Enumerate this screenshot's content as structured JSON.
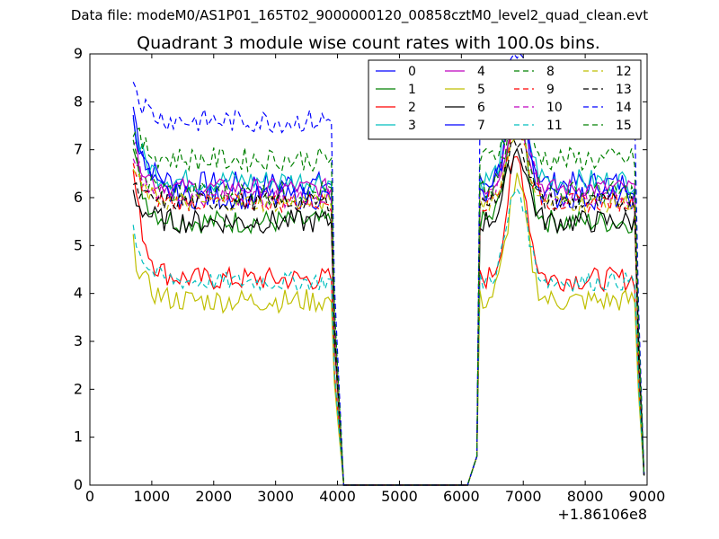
{
  "header": {
    "data_file": "Data file: modeM0/AS1P01_165T02_9000000120_00858cztM0_level2_quad_clean.evt"
  },
  "chart_data": {
    "type": "line",
    "title": "Quadrant 3 module wise count rates with 100.0s bins.",
    "xlabel": "",
    "ylabel": "",
    "x_offset_label": "+1.86106e8",
    "xlim": [
      0,
      9000
    ],
    "ylim": [
      0,
      9
    ],
    "x_ticks": [
      0,
      1000,
      2000,
      3000,
      4000,
      5000,
      6000,
      7000,
      8000,
      9000
    ],
    "y_ticks": [
      0,
      1,
      2,
      3,
      4,
      5,
      6,
      7,
      8,
      9
    ],
    "legend_position": "top-right",
    "legend_columns": 4,
    "segments": [
      {
        "start": 700,
        "end": 3900,
        "drop_end": 4100
      },
      {
        "start": 6300,
        "end": 8800,
        "rise_start": 6100,
        "drop_end": 8950
      }
    ],
    "series": [
      {
        "name": "0",
        "color": "#0000ff",
        "style": "solid",
        "baseline": 6.3,
        "peak": 7.9,
        "peak2": 8.1,
        "amp": 0.25
      },
      {
        "name": "1",
        "color": "#008000",
        "style": "solid",
        "baseline": 5.5,
        "peak": 7.0,
        "peak2": 7.6,
        "amp": 0.25
      },
      {
        "name": "2",
        "color": "#ff0000",
        "style": "solid",
        "baseline": 4.3,
        "peak": 6.6,
        "peak2": 6.8,
        "amp": 0.25
      },
      {
        "name": "3",
        "color": "#00bfbf",
        "style": "solid",
        "baseline": 6.35,
        "peak": 7.6,
        "peak2": 8.2,
        "amp": 0.25
      },
      {
        "name": "4",
        "color": "#bf00bf",
        "style": "solid",
        "baseline": 6.2,
        "peak": 7.2,
        "peak2": 7.7,
        "amp": 0.2
      },
      {
        "name": "5",
        "color": "#bfbf00",
        "style": "solid",
        "baseline": 3.85,
        "peak": 5.0,
        "peak2": 6.3,
        "amp": 0.25
      },
      {
        "name": "6",
        "color": "#000000",
        "style": "solid",
        "baseline": 5.5,
        "peak": 6.1,
        "peak2": 7.0,
        "amp": 0.25
      },
      {
        "name": "7",
        "color": "#0000ff",
        "style": "solid",
        "baseline": 6.0,
        "peak": 7.8,
        "peak2": 8.5,
        "amp": 0.25
      },
      {
        "name": "8",
        "color": "#008000",
        "style": "dashed",
        "baseline": 6.1,
        "peak": 7.0,
        "peak2": 7.8,
        "amp": 0.25
      },
      {
        "name": "9",
        "color": "#ff0000",
        "style": "dashed",
        "baseline": 5.9,
        "peak": 6.6,
        "peak2": 7.5,
        "amp": 0.2
      },
      {
        "name": "10",
        "color": "#bf00bf",
        "style": "dashed",
        "baseline": 6.0,
        "peak": 7.0,
        "peak2": 8.3,
        "amp": 0.2
      },
      {
        "name": "11",
        "color": "#00bfbf",
        "style": "dashed",
        "baseline": 4.25,
        "peak": 5.4,
        "peak2": 6.2,
        "amp": 0.2
      },
      {
        "name": "12",
        "color": "#bfbf00",
        "style": "dashed",
        "baseline": 5.9,
        "peak": 6.6,
        "peak2": 7.4,
        "amp": 0.2
      },
      {
        "name": "13",
        "color": "#000000",
        "style": "dashed",
        "baseline": 5.9,
        "peak": 6.2,
        "peak2": 7.2,
        "amp": 0.2
      },
      {
        "name": "14",
        "color": "#0000ff",
        "style": "dashed",
        "baseline": 7.6,
        "peak": 8.5,
        "peak2": 9.0,
        "amp": 0.25
      },
      {
        "name": "15",
        "color": "#008000",
        "style": "dashed",
        "baseline": 6.8,
        "peak": 7.5,
        "peak2": 8.0,
        "amp": 0.25
      }
    ]
  }
}
